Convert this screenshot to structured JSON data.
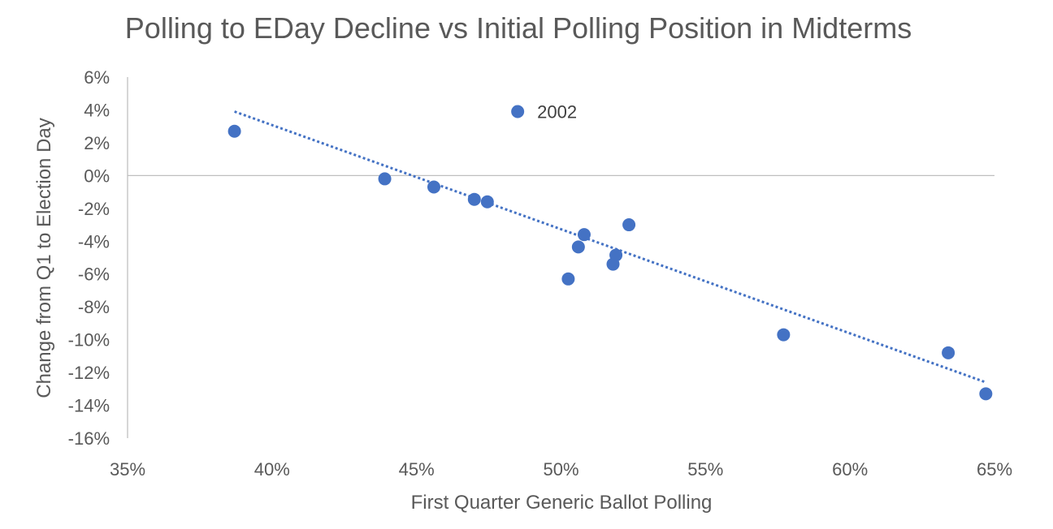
{
  "chart_data": {
    "type": "scatter",
    "title": "Polling to EDay Decline vs Initial Polling Position in Midterms",
    "xlabel": "First Quarter Generic Ballot Polling",
    "ylabel": "Change from Q1 to Election Day",
    "xlim": [
      0.35,
      0.65
    ],
    "ylim": [
      -0.16,
      0.06
    ],
    "xticks": [
      0.35,
      0.4,
      0.45,
      0.5,
      0.55,
      0.6,
      0.65
    ],
    "yticks": [
      0.06,
      0.04,
      0.02,
      0.0,
      -0.02,
      -0.04,
      -0.06,
      -0.08,
      -0.1,
      -0.12,
      -0.14,
      -0.16
    ],
    "x_tick_labels": [
      "35%",
      "40%",
      "45%",
      "50%",
      "55%",
      "60%",
      "65%"
    ],
    "y_tick_labels": [
      "6%",
      "4%",
      "2%",
      "0%",
      "-2%",
      "-4%",
      "-6%",
      "-8%",
      "-10%",
      "-12%",
      "-14%",
      "-16%"
    ],
    "points": [
      {
        "x": 0.387,
        "y": 0.027
      },
      {
        "x": 0.439,
        "y": -0.002
      },
      {
        "x": 0.456,
        "y": -0.007
      },
      {
        "x": 0.47,
        "y": -0.0145
      },
      {
        "x": 0.4745,
        "y": -0.016
      },
      {
        "x": 0.485,
        "y": 0.039,
        "label": "2002"
      },
      {
        "x": 0.5025,
        "y": -0.063
      },
      {
        "x": 0.506,
        "y": -0.0435
      },
      {
        "x": 0.508,
        "y": -0.036
      },
      {
        "x": 0.518,
        "y": -0.054
      },
      {
        "x": 0.519,
        "y": -0.0485
      },
      {
        "x": 0.5235,
        "y": -0.03
      },
      {
        "x": 0.577,
        "y": -0.097
      },
      {
        "x": 0.634,
        "y": -0.108
      },
      {
        "x": 0.647,
        "y": -0.133
      }
    ],
    "trendline": {
      "style": "dotted",
      "x": [
        0.387,
        0.647
      ],
      "y": [
        0.039,
        -0.126
      ]
    },
    "colors": {
      "marker": "#4472C4",
      "trendline": "#4472C4",
      "axis": "#BFBFBF",
      "text": "#595959"
    },
    "grid": false,
    "legend": "none"
  }
}
